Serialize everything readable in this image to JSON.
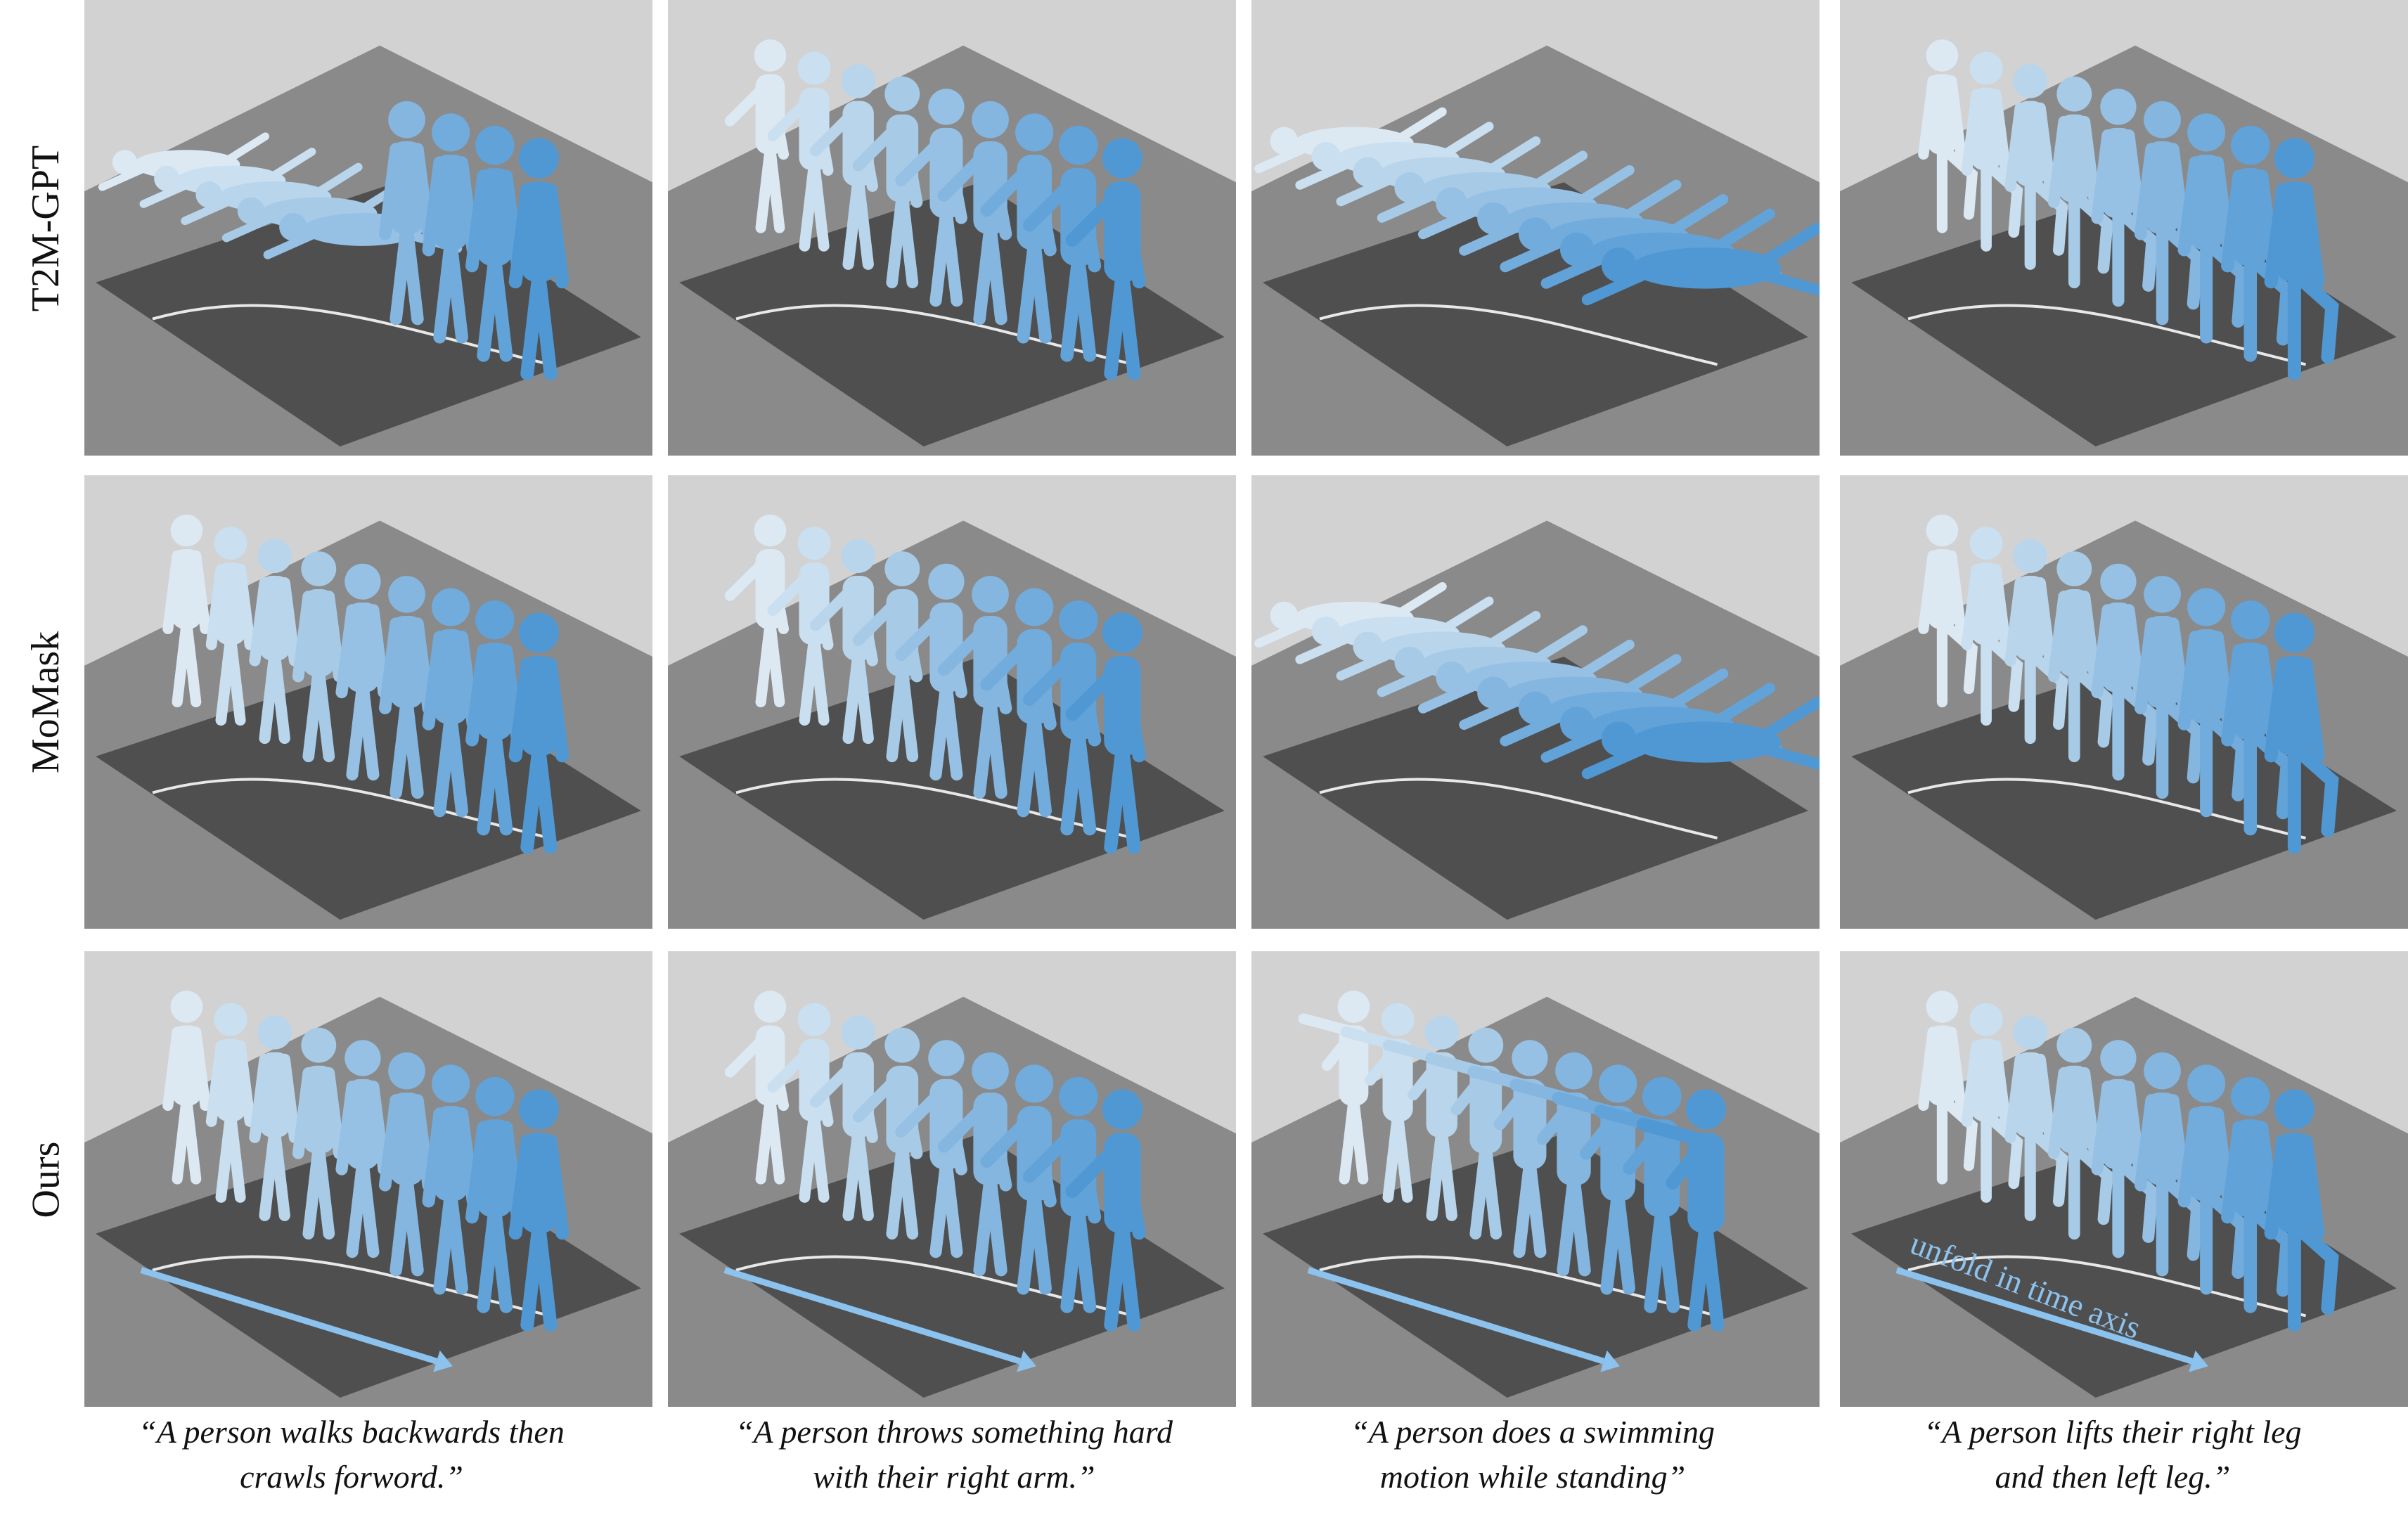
{
  "rows": [
    {
      "label": "T2M-GPT"
    },
    {
      "label": "MoMask"
    },
    {
      "label": "Ours"
    }
  ],
  "captions": [
    {
      "line1": "“A person walks backwards then",
      "line2": "crawls forword.”"
    },
    {
      "line1": "“A person throws something hard",
      "line2": "with their right arm.”"
    },
    {
      "line1": "“A person does a swimming",
      "line2": "motion while standing”"
    },
    {
      "line1": "“A person lifts their right leg",
      "line2": "and then left leg.”"
    }
  ],
  "annotation": {
    "text": "unfold in time axis"
  },
  "colors": {
    "background": "#d2d2d2",
    "floor": "#8a8a8a",
    "mat": "#4f4f4f",
    "figure_light": "#dce9f3",
    "figure_dark": "#4f98d4",
    "arrow": "#8cc2ee",
    "annotation_text": "#8cc2ee"
  }
}
